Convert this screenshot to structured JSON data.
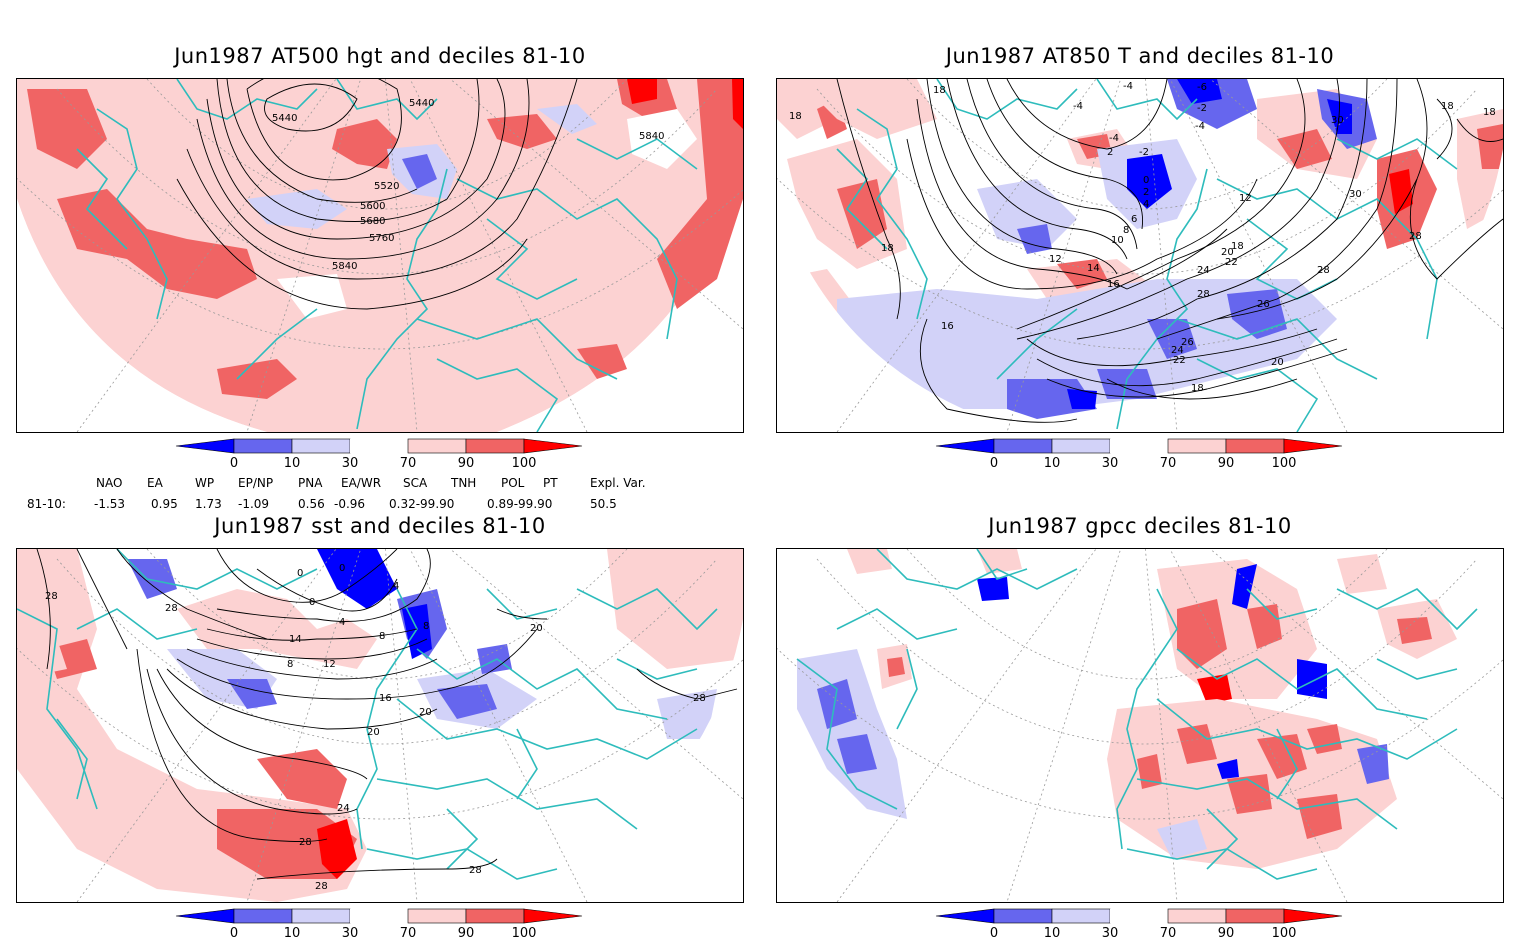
{
  "panels": [
    {
      "title": "Jun1987 AT500 hgt and deciles 81-10",
      "contour_labels": [
        "5440",
        "5440",
        "5840",
        "5520",
        "5600",
        "5680",
        "5760",
        "5840"
      ]
    },
    {
      "title": "Jun1987 AT850 T and deciles 81-10",
      "contour_labels": [
        "-4",
        "-4",
        "-6",
        "-4",
        "-2",
        "-4",
        "2",
        "-2",
        "0",
        "2",
        "4",
        "6",
        "8",
        "10",
        "12",
        "14",
        "16",
        "18",
        "18",
        "18",
        "20",
        "22",
        "24",
        "26",
        "28",
        "28",
        "30",
        "30",
        "12",
        "18",
        "18",
        "16",
        "18",
        "18",
        "20",
        "22",
        "24",
        "26",
        "28"
      ]
    },
    {
      "title": "Jun1987 sst and deciles 81-10",
      "contour_labels": [
        "28",
        "28",
        "0",
        "0",
        "4",
        "0",
        "4",
        "8",
        "8",
        "14",
        "8",
        "12",
        "16",
        "20",
        "20",
        "20",
        "24",
        "28",
        "28",
        "28",
        "28"
      ]
    },
    {
      "title": "Jun1987 gpcc deciles 81-10",
      "contour_labels": []
    }
  ],
  "colorbar": {
    "labels": [
      "0",
      "10",
      "30",
      "70",
      "90",
      "100"
    ],
    "colors": [
      "#0000ff",
      "#6666ee",
      "#d2d2f8",
      "#ffffff",
      "#fcd2d2",
      "#f06464",
      "#ff0000"
    ]
  },
  "indices": {
    "header": [
      "NAO",
      "EA",
      "WP",
      "EP/NP",
      "PNA",
      "EA/WR",
      "SCA",
      "TNH",
      "POL",
      "PT",
      "Expl. Var."
    ],
    "row_label": "81-10:",
    "values": [
      "-1.53",
      "0.95",
      "1.73",
      "-1.09",
      "0.56",
      "-0.96",
      "0.32-99.90",
      "0.89-99.90",
      "50.5"
    ]
  }
}
